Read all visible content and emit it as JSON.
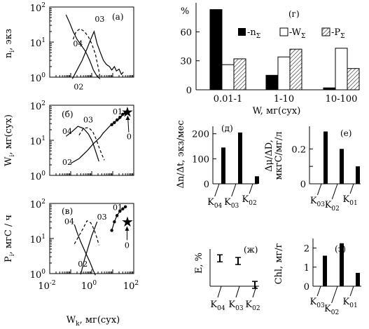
{
  "panels": {
    "a": {
      "label": "(а)",
      "ylabel": {
        "main": "n",
        "sub": "i",
        "rest": ", экз"
      },
      "yscale": "log",
      "ylim": [
        1,
        100
      ],
      "xscale": "log",
      "xlim": [
        0.01,
        100
      ],
      "ytick_labels": [
        {
          "v": 1,
          "base": "10",
          "exp": "0"
        },
        {
          "v": 10,
          "base": "10",
          "exp": "1"
        },
        {
          "v": 100,
          "base": "10",
          "exp": "2"
        }
      ],
      "series": [
        {
          "name": "04",
          "style": "solid",
          "label_at": [
            0.13,
            7.5
          ],
          "points": [
            [
              0.06,
              60
            ],
            [
              0.09,
              35
            ],
            [
              0.13,
              20
            ],
            [
              0.2,
              12
            ],
            [
              0.32,
              8
            ],
            [
              0.5,
              5.5
            ],
            [
              0.8,
              3
            ],
            [
              1.2,
              1.6
            ],
            [
              1.8,
              1.05
            ],
            [
              2.5,
              0.9
            ]
          ]
        },
        {
          "name": "03",
          "style": "dashed",
          "label_at": [
            1.4,
            38
          ],
          "points": [
            [
              0.13,
              12
            ],
            [
              0.18,
              20
            ],
            [
              0.28,
              24
            ],
            [
              0.45,
              20
            ],
            [
              0.7,
              14
            ],
            [
              1.0,
              9
            ],
            [
              1.5,
              4.5
            ],
            [
              2.0,
              2.0
            ],
            [
              2.6,
              0.9
            ]
          ]
        },
        {
          "name": "02",
          "style": "solid",
          "label_at": [
            0.14,
            0.45
          ],
          "points": [
            [
              0.12,
              0.9
            ],
            [
              0.2,
              1.6
            ],
            [
              0.35,
              3.0
            ],
            [
              0.6,
              6.5
            ],
            [
              0.9,
              12
            ],
            [
              1.3,
              20
            ],
            [
              1.8,
              9
            ],
            [
              2.6,
              5.0
            ],
            [
              3.6,
              3.0
            ],
            [
              5.0,
              2.3
            ],
            [
              7.0,
              2.0
            ],
            [
              9.0,
              1.6
            ],
            [
              12.0,
              2.0
            ],
            [
              15.0,
              1.5
            ],
            [
              20.0,
              1.7
            ],
            [
              26.0,
              1.2
            ],
            [
              32.0,
              1.4
            ]
          ]
        }
      ]
    },
    "b": {
      "label": "(б)",
      "ylabel": {
        "main": "W",
        "sub": "i",
        "rest": ", мг(сух)"
      },
      "yscale": "log",
      "ylim": [
        1,
        100
      ],
      "xscale": "log",
      "xlim": [
        0.01,
        100
      ],
      "ytick_labels": [
        {
          "v": 1,
          "base": "10",
          "exp": "0"
        },
        {
          "v": 10,
          "base": "10",
          "exp": "1"
        },
        {
          "v": 100,
          "base": "10",
          "exp": "2"
        }
      ],
      "series": [
        {
          "name": "04",
          "style": "solid",
          "label_at": [
            0.04,
            15
          ],
          "points": [
            [
              0.06,
              13
            ],
            [
              0.12,
              18
            ],
            [
              0.22,
              25
            ],
            [
              0.4,
              22
            ],
            [
              0.7,
              15
            ],
            [
              1.1,
              9
            ],
            [
              1.6,
              4.5
            ],
            [
              2.2,
              2.5
            ]
          ]
        },
        {
          "name": "03",
          "style": "dashed",
          "label_at": [
            0.4,
            32
          ],
          "points": [
            [
              0.25,
              14
            ],
            [
              0.4,
              22
            ],
            [
              0.7,
              23
            ],
            [
              1.1,
              18
            ],
            [
              1.6,
              11
            ],
            [
              2.2,
              6.5
            ],
            [
              3.0,
              4.0
            ],
            [
              4.0,
              2.7
            ]
          ]
        },
        {
          "name": "02",
          "style": "solid",
          "label_at": [
            0.04,
            2.0
          ],
          "points": [
            [
              0.1,
              2.2
            ],
            [
              0.25,
              3.0
            ],
            [
              0.6,
              5.0
            ],
            [
              1.2,
              8.0
            ],
            [
              2.5,
              12
            ],
            [
              3.5,
              16
            ],
            [
              5,
              20
            ],
            [
              7,
              25
            ],
            [
              10,
              30
            ],
            [
              14,
              35
            ],
            [
              20,
              40
            ],
            [
              28,
              50
            ],
            [
              35,
              60
            ]
          ]
        },
        {
          "name": "01",
          "style": "dots",
          "label_at": [
            10,
            55
          ],
          "points": [
            [
              9,
              28
            ],
            [
              12,
              32
            ],
            [
              16,
              38
            ],
            [
              22,
              45
            ],
            [
              30,
              55
            ],
            [
              40,
              60
            ]
          ]
        }
      ],
      "star": {
        "label": "0",
        "at": [
          50,
          65
        ],
        "label_at": [
          60,
          13
        ],
        "arrow": [
          [
            58,
            17
          ],
          [
            52,
            50
          ]
        ]
      }
    },
    "c": {
      "label": "(в)",
      "ylabel": {
        "main": "P",
        "sub": "i",
        "rest": ", мгС / ч"
      },
      "yscale": "log",
      "ylim": [
        1,
        100
      ],
      "xscale": "log",
      "xlim": [
        0.01,
        100
      ],
      "ytick_labels": [
        {
          "v": 1,
          "base": "10",
          "exp": "0"
        },
        {
          "v": 10,
          "base": "10",
          "exp": "1"
        },
        {
          "v": 100,
          "base": "10",
          "exp": "2"
        }
      ],
      "xtick_labels": [
        {
          "v": 0.01,
          "base": "10",
          "exp": "-2"
        },
        {
          "v": 1,
          "base": "10",
          "exp": "0"
        },
        {
          "v": 100,
          "base": "10",
          "exp": "2"
        }
      ],
      "xlabel": {
        "main": "W",
        "sub": "k",
        "rest": ", мг(сух)"
      },
      "series": [
        {
          "name": "04",
          "style": "solid",
          "label_at": [
            0.05,
            26
          ],
          "points": [
            [
              0.15,
              25
            ],
            [
              0.2,
              15
            ],
            [
              0.3,
              8
            ],
            [
              0.5,
              4
            ],
            [
              0.8,
              2.2
            ],
            [
              1.2,
              1.2
            ],
            [
              1.5,
              0.9
            ]
          ]
        },
        {
          "name": "03",
          "style": "dashed",
          "label_at": [
            1.8,
            35
          ],
          "points": [
            [
              0.15,
              7
            ],
            [
              0.25,
              12
            ],
            [
              0.4,
              20
            ],
            [
              0.6,
              32
            ],
            [
              0.9,
              28
            ],
            [
              1.3,
              18
            ],
            [
              1.8,
              10
            ],
            [
              2.2,
              6.5
            ]
          ]
        },
        {
          "name": "02",
          "style": "solid",
          "label_at": [
            0.22,
            1.6
          ],
          "points": [
            [
              0.3,
              0.95
            ],
            [
              0.45,
              2.5
            ],
            [
              0.7,
              6
            ],
            [
              1.0,
              12
            ],
            [
              1.4,
              20
            ],
            [
              1.8,
              30
            ]
          ]
        },
        {
          "name": "01",
          "style": "dots",
          "label_at": [
            10,
            65
          ],
          "points": [
            [
              9,
              17
            ],
            [
              12,
              30
            ],
            [
              16,
              45
            ],
            [
              22,
              60
            ],
            [
              30,
              70
            ],
            [
              40,
              80
            ]
          ]
        }
      ],
      "star": {
        "label": "0",
        "at": [
          50,
          30
        ],
        "label_at": [
          48,
          6.5
        ],
        "arrow": [
          [
            48,
            9
          ],
          [
            48,
            22
          ]
        ]
      }
    },
    "g": {
      "label": "(г)",
      "ylabel": "%",
      "ylim": [
        0,
        90
      ],
      "yticks": [
        0,
        30,
        60
      ],
      "categories": [
        "0.01-1",
        "1-10",
        "10-100"
      ],
      "xlabel": "W, мг(сух)",
      "legend": [
        {
          "swatch": "solid",
          "prefix": "-n",
          "sub": "Σ"
        },
        {
          "swatch": "open",
          "prefix": "-W",
          "sub": "Σ"
        },
        {
          "swatch": "hatch",
          "prefix": "-P",
          "sub": "Σ"
        }
      ],
      "series": [
        {
          "name": "n_Σ",
          "style": "solid",
          "values": [
            83,
            15,
            2
          ]
        },
        {
          "name": "W_Σ",
          "style": "open",
          "values": [
            26,
            34,
            43
          ]
        },
        {
          "name": "P_Σ",
          "style": "hatch",
          "values": [
            32,
            42,
            22
          ]
        }
      ]
    },
    "d": {
      "label": "(д)",
      "ylabel": "Δn/Δt, экз/мес",
      "ylim": [
        0,
        230
      ],
      "yticks": [
        0,
        100,
        200
      ],
      "categories": [
        {
          "main": "K",
          "sub": "04"
        },
        {
          "main": "K",
          "sub": "03"
        },
        {
          "main": "K",
          "sub": "02"
        }
      ],
      "values": [
        145,
        205,
        30
      ]
    },
    "e": {
      "label": "(е)",
      "ylabel_lines": [
        "Δμ/ΔD,",
        "мкгС/мг/л"
      ],
      "ylim": [
        0,
        0.33
      ],
      "yticks": [
        0,
        0.1,
        0.2
      ],
      "ytick_labels": [
        "0",
        "",
        "0.2"
      ],
      "categories": [
        {
          "main": "K",
          "sub": "03"
        },
        {
          "main": "K",
          "sub": "02"
        },
        {
          "main": "K",
          "sub": "01"
        }
      ],
      "values": [
        0.3,
        0.2,
        0.1
      ]
    },
    "zh": {
      "label": "(ж)",
      "ylabel": "E, %",
      "ylim": [
        0,
        28
      ],
      "categories": [
        {
          "main": "K",
          "sub": "04"
        },
        {
          "main": "K",
          "sub": "03"
        },
        {
          "main": "K",
          "sub": "02"
        }
      ],
      "values": [
        21,
        19,
        1
      ]
    },
    "z": {
      "label": "(з)",
      "ylabel": "Chl, мг/г",
      "ylim": [
        0,
        2.5
      ],
      "yticks": [
        0,
        1,
        2
      ],
      "categories": [
        {
          "main": "K",
          "sub": "03"
        },
        {
          "main": "K",
          "sub": "02"
        },
        {
          "main": "K",
          "sub": "01"
        }
      ],
      "values": [
        1.6,
        2.25,
        0.7
      ]
    }
  }
}
